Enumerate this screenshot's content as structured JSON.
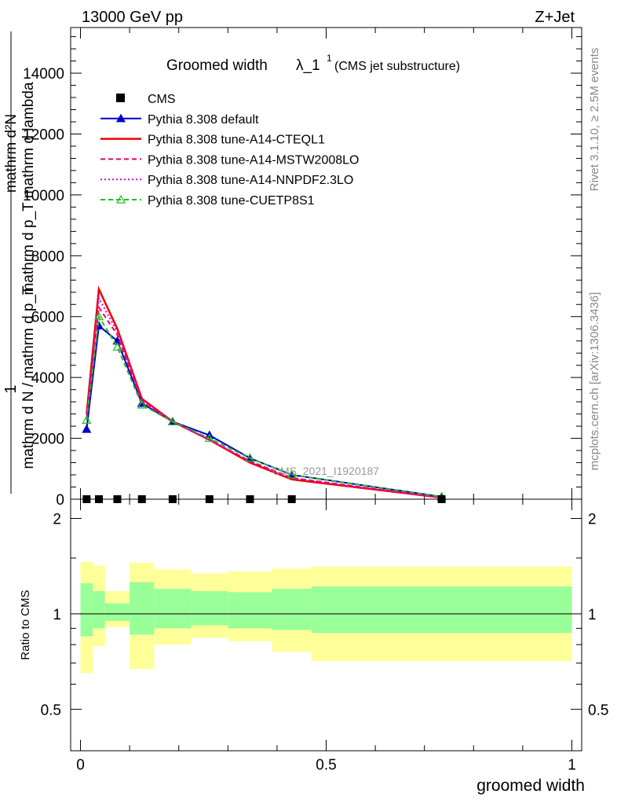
{
  "header": {
    "left_label": "13000 GeV pp",
    "right_label": "Z+Jet",
    "title_main": "Groomed width",
    "title_lambda": "λ_1",
    "title_sup": "1",
    "title_sub": "(CMS jet substructure)"
  },
  "side_labels": {
    "rivet": "Rivet 3.1.10, ≥ 2.5M events",
    "mcplots": "mcplots.cern.ch [arXiv:1306.3436]"
  },
  "watermark": "CMS_2021_I1920187",
  "yaxis_label": {
    "line1": "mathrm d²N",
    "line2": "mathrm d p_T mathrm d lambda",
    "one": "1",
    "line3": "mathrm d N / mathrm d p_T"
  },
  "ratio_ylabel": "Ratio to CMS",
  "xlabel": "groomed width",
  "legend": [
    {
      "name": "CMS",
      "color": "#000000",
      "style": "square"
    },
    {
      "name": "Pythia 8.308 default",
      "color": "#0000cc",
      "style": "line-tri"
    },
    {
      "name": "Pythia 8.308 tune-A14-CTEQL1",
      "color": "#ee0000",
      "style": "solid"
    },
    {
      "name": "Pythia 8.308 tune-A14-MSTW2008LO",
      "color": "#ee0066",
      "style": "dash"
    },
    {
      "name": "Pythia 8.308 tune-A14-NNPDF2.3LO",
      "color": "#dd00cc",
      "style": "dot"
    },
    {
      "name": "Pythia 8.308 tune-CUETP8S1",
      "color": "#22bb22",
      "style": "dash-tri"
    }
  ],
  "chart_data": {
    "type": "line",
    "xlabel": "groomed width",
    "xlim": [
      -0.02,
      1.02
    ],
    "ylim": [
      0,
      15500
    ],
    "yticks": [
      0,
      2000,
      4000,
      6000,
      8000,
      10000,
      12000,
      14000
    ],
    "ytick_labels": [
      "0",
      "2000",
      "4000",
      "6000",
      "8000",
      "10000",
      "12000",
      "14000"
    ],
    "xticks": [
      0,
      0.5,
      1
    ],
    "xtick_labels": [
      "0",
      "0.5",
      "1"
    ],
    "bins": [
      [
        0,
        0.025
      ],
      [
        0.025,
        0.05
      ],
      [
        0.05,
        0.1
      ],
      [
        0.1,
        0.15
      ],
      [
        0.15,
        0.225
      ],
      [
        0.225,
        0.3
      ],
      [
        0.3,
        0.39
      ],
      [
        0.39,
        0.47
      ],
      [
        0.47,
        1.0
      ]
    ],
    "x": [
      0.0125,
      0.0375,
      0.075,
      0.125,
      0.1875,
      0.2625,
      0.345,
      0.43,
      0.735
    ],
    "cms_values": [
      0,
      0,
      0,
      0,
      0,
      0,
      0,
      0,
      0
    ],
    "series": [
      {
        "name": "Pythia 8.308 default",
        "values": [
          2300,
          5700,
          5200,
          3150,
          2550,
          2100,
          1350,
          800,
          80
        ]
      },
      {
        "name": "Pythia 8.308 tune-A14-CTEQL1",
        "values": [
          2800,
          6900,
          5600,
          3300,
          2550,
          1950,
          1200,
          650,
          50
        ]
      },
      {
        "name": "Pythia 8.308 tune-A14-MSTW2008LO",
        "values": [
          2700,
          6300,
          5400,
          3200,
          2550,
          1950,
          1250,
          700,
          50
        ]
      },
      {
        "name": "Pythia 8.308 tune-A14-NNPDF2.3LO",
        "values": [
          2700,
          6600,
          5500,
          3250,
          2550,
          1950,
          1250,
          700,
          50
        ]
      },
      {
        "name": "Pythia 8.308 tune-CUETP8S1",
        "values": [
          2600,
          6000,
          5000,
          3100,
          2550,
          2000,
          1350,
          800,
          80
        ]
      }
    ],
    "ratio": {
      "ylabel": "Ratio to CMS",
      "ylim": [
        0.37,
        2.3
      ],
      "yticks": [
        0.5,
        1,
        2
      ],
      "ytick_labels": [
        "0.5",
        "1",
        "2"
      ],
      "band_inner": [
        [
          0.85,
          1.25
        ],
        [
          0.9,
          1.18
        ],
        [
          0.95,
          1.08
        ],
        [
          0.86,
          1.26
        ],
        [
          0.9,
          1.2
        ],
        [
          0.92,
          1.18
        ],
        [
          0.9,
          1.17
        ],
        [
          0.89,
          1.2
        ],
        [
          0.87,
          1.22
        ]
      ],
      "band_outer": [
        [
          0.65,
          1.46
        ],
        [
          0.79,
          1.42
        ],
        [
          0.91,
          1.18
        ],
        [
          0.67,
          1.45
        ],
        [
          0.8,
          1.38
        ],
        [
          0.84,
          1.34
        ],
        [
          0.82,
          1.36
        ],
        [
          0.76,
          1.39
        ],
        [
          0.71,
          1.41
        ]
      ]
    }
  }
}
